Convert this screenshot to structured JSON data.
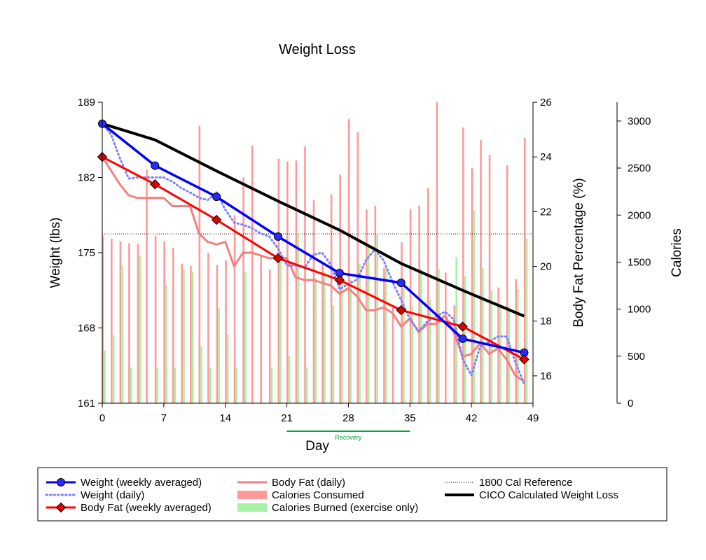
{
  "chart_data": {
    "type": "line",
    "title": "Weight Loss",
    "xlabel": "Day",
    "ylabel": "Weight (lbs)",
    "y2label": "Body Fat Percentage (%)",
    "y3label": "Calories",
    "xlim": [
      0,
      49
    ],
    "ylim": [
      161,
      189
    ],
    "y2lim": [
      15,
      26
    ],
    "y3lim": [
      0,
      3200
    ],
    "xticks": [
      "0",
      "7",
      "14",
      "21",
      "28",
      "35",
      "42",
      "49"
    ],
    "yticks": [
      "161",
      "168",
      "175",
      "182",
      "189"
    ],
    "y2ticks": [
      "16",
      "18",
      "20",
      "22",
      "24",
      "26"
    ],
    "y3ticks": [
      "0",
      "500",
      "1000",
      "1500",
      "2000",
      "2500",
      "3000"
    ],
    "annotation": {
      "label": "Recovery",
      "x_start": 21,
      "x_end": 35
    },
    "reference_calories": 1800,
    "legend_position": "bottom",
    "legend": {
      "weight_weekly": "Weight (weekly averaged)",
      "weight_daily": "Weight (daily)",
      "bodyfat_weekly": "Body Fat (weekly averaged)",
      "bodyfat_daily": "Body Fat (daily)",
      "calories_consumed": "Calories Consumed",
      "calories_burned": "Calories Burned (exercise only)",
      "cal_reference": "1800 Cal Reference",
      "cico": "CICO Calculated Weight Loss"
    },
    "colors": {
      "weight_weekly": "#0000ff",
      "weight_weekly_marker": "#2a2aff",
      "weight_daily": "#8080ff",
      "bodyfat_weekly": "#ff0000",
      "bodyfat_daily": "#f28080",
      "calories_consumed": "#ff9999",
      "calories_burned": "#a6f2a6",
      "cico": "#000000",
      "recovery": "#00aa33"
    },
    "series": [
      {
        "key": "weight_weekly",
        "axis": "weight",
        "x": [
          0,
          6,
          13,
          20,
          27,
          34,
          41,
          48
        ],
        "y": [
          187.0,
          183.1,
          180.2,
          176.5,
          173.1,
          172.2,
          167.0,
          165.7
        ]
      },
      {
        "key": "weight_daily",
        "axis": "weight",
        "x": [
          0,
          1,
          2,
          3,
          4,
          5,
          6,
          7,
          8,
          9,
          10,
          11,
          12,
          13,
          14,
          15,
          16,
          17,
          18,
          19,
          20,
          21,
          22,
          23,
          24,
          25,
          26,
          27,
          28,
          29,
          30,
          31,
          32,
          33,
          34,
          35,
          36,
          37,
          38,
          39,
          40,
          41,
          42,
          43,
          44,
          45,
          46,
          47,
          48
        ],
        "y": [
          187.0,
          186.0,
          183.8,
          181.9,
          182.0,
          182.0,
          182.0,
          182.0,
          181.6,
          181.0,
          180.6,
          180.1,
          179.9,
          180.6,
          179.0,
          177.8,
          177.6,
          177.3,
          176.8,
          176.5,
          175.4,
          173.8,
          173.8,
          173.6,
          174.8,
          175.0,
          173.9,
          171.6,
          172.1,
          172.5,
          174.3,
          175.3,
          174.3,
          172.3,
          170.6,
          168.8,
          167.7,
          168.6,
          169.1,
          169.5,
          168.8,
          165.1,
          163.6,
          166.3,
          166.7,
          167.2,
          167.2,
          164.8,
          162.8
        ]
      },
      {
        "key": "bodyfat_weekly",
        "axis": "bodyfat",
        "x": [
          0,
          6,
          13,
          20,
          27,
          34,
          41,
          48
        ],
        "y": [
          24.0,
          23.0,
          21.7,
          20.3,
          19.5,
          18.4,
          17.8,
          16.6
        ]
      },
      {
        "key": "bodyfat_daily",
        "axis": "bodyfat",
        "x": [
          0,
          1,
          2,
          3,
          4,
          5,
          6,
          7,
          8,
          9,
          10,
          11,
          12,
          13,
          14,
          15,
          16,
          17,
          18,
          19,
          20,
          21,
          22,
          23,
          24,
          25,
          26,
          27,
          28,
          29,
          30,
          31,
          32,
          33,
          34,
          35,
          36,
          37,
          38,
          39,
          40,
          41,
          42,
          43,
          44,
          45,
          46,
          47,
          48
        ],
        "y": [
          24.0,
          23.5,
          23.0,
          22.6,
          22.5,
          22.5,
          22.5,
          22.5,
          22.2,
          22.2,
          22.2,
          21.2,
          20.9,
          20.8,
          20.9,
          20.0,
          20.5,
          20.5,
          20.4,
          20.3,
          20.3,
          20.3,
          19.6,
          19.5,
          19.5,
          19.4,
          19.3,
          19.0,
          19.2,
          18.9,
          18.4,
          18.4,
          18.5,
          18.3,
          17.8,
          18.1,
          17.6,
          17.9,
          17.9,
          18.2,
          17.6,
          16.7,
          16.8,
          17.2,
          16.8,
          17.0,
          16.6,
          16.0,
          15.8
        ]
      },
      {
        "key": "cico",
        "axis": "weight",
        "x": [
          0,
          6,
          13,
          20,
          27,
          34,
          41,
          48
        ],
        "y": [
          187.0,
          185.5,
          182.6,
          179.8,
          177.1,
          174.0,
          171.5,
          169.1
        ]
      }
    ],
    "calories_consumed": [
      1780,
      1750,
      1720,
      1700,
      1690,
      2480,
      1780,
      1720,
      1650,
      1480,
      1460,
      2950,
      1600,
      1470,
      1520,
      2000,
      2400,
      2740,
      1570,
      1420,
      2600,
      2570,
      2580,
      2730,
      2160,
      1500,
      2220,
      2430,
      3020,
      2880,
      2060,
      2100,
      1440,
      1020,
      1710,
      2060,
      2100,
      2290,
      3200,
      1390,
      1040,
      2930,
      2500,
      2800,
      2640,
      1230,
      2530,
      1320,
      2820
    ],
    "calories_burned": [
      560,
      720,
      1470,
      380,
      1570,
      0,
      380,
      1260,
      380,
      1420,
      1400,
      600,
      380,
      1010,
      730,
      380,
      1390,
      0,
      0,
      380,
      1560,
      500,
      1800,
      380,
      1330,
      1400,
      1040,
      1400,
      1310,
      1480,
      1690,
      1790,
      1470,
      0,
      1240,
      1030,
      1430,
      1100,
      1430,
      0,
      1550,
      1350,
      2050,
      1440,
      1200,
      1050,
      1030,
      1210,
      1750
    ]
  }
}
